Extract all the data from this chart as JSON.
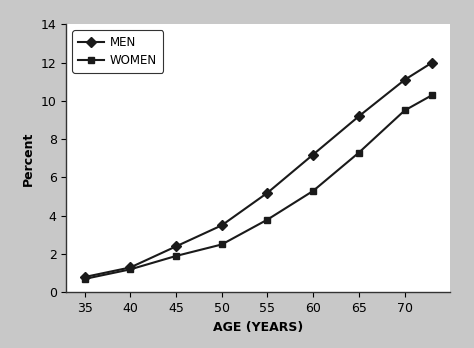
{
  "age": [
    35,
    40,
    45,
    50,
    55,
    60,
    65,
    70,
    73
  ],
  "men": [
    0.8,
    1.3,
    2.4,
    3.5,
    5.2,
    7.2,
    9.2,
    11.1,
    12.0
  ],
  "women": [
    0.7,
    1.2,
    1.9,
    2.5,
    3.8,
    5.3,
    7.3,
    9.5,
    10.3
  ],
  "xlabel": "AGE (YEARS)",
  "ylabel": "Percent",
  "legend_men": "MEN",
  "legend_women": "WOMEN",
  "ylim": [
    0,
    14
  ],
  "yticks": [
    0,
    2,
    4,
    6,
    8,
    10,
    12,
    14
  ],
  "xlim": [
    33,
    75
  ],
  "xticks": [
    35,
    40,
    45,
    50,
    55,
    60,
    65,
    70
  ],
  "line_color": "#1a1a1a",
  "background_color": "#c8c8c8",
  "plot_bg_color": "#ffffff"
}
